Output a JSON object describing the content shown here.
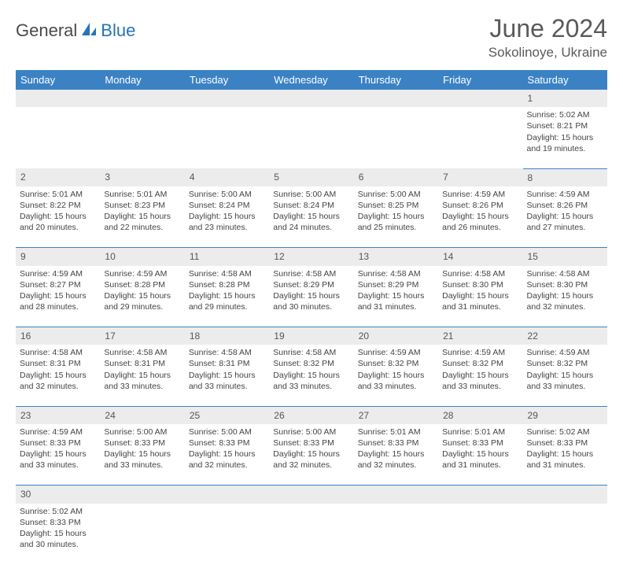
{
  "logo": {
    "part1": "General",
    "part2": "Blue"
  },
  "title": "June 2024",
  "location": "Sokolinoye, Ukraine",
  "colors": {
    "header_bg": "#3b82c4",
    "header_fg": "#ffffff",
    "daynum_bg": "#ececec",
    "cell_border": "#3b82c4",
    "text": "#444444",
    "logo_blue": "#2673b8",
    "logo_gray": "#4a4a4a"
  },
  "weekdays": [
    "Sunday",
    "Monday",
    "Tuesday",
    "Wednesday",
    "Thursday",
    "Friday",
    "Saturday"
  ],
  "weeks": [
    {
      "nums": [
        "",
        "",
        "",
        "",
        "",
        "",
        "1"
      ],
      "cells": [
        null,
        null,
        null,
        null,
        null,
        null,
        {
          "sunrise": "5:02 AM",
          "sunset": "8:21 PM",
          "daylight": "15 hours and 19 minutes."
        }
      ]
    },
    {
      "nums": [
        "2",
        "3",
        "4",
        "5",
        "6",
        "7",
        "8"
      ],
      "cells": [
        {
          "sunrise": "5:01 AM",
          "sunset": "8:22 PM",
          "daylight": "15 hours and 20 minutes."
        },
        {
          "sunrise": "5:01 AM",
          "sunset": "8:23 PM",
          "daylight": "15 hours and 22 minutes."
        },
        {
          "sunrise": "5:00 AM",
          "sunset": "8:24 PM",
          "daylight": "15 hours and 23 minutes."
        },
        {
          "sunrise": "5:00 AM",
          "sunset": "8:24 PM",
          "daylight": "15 hours and 24 minutes."
        },
        {
          "sunrise": "5:00 AM",
          "sunset": "8:25 PM",
          "daylight": "15 hours and 25 minutes."
        },
        {
          "sunrise": "4:59 AM",
          "sunset": "8:26 PM",
          "daylight": "15 hours and 26 minutes."
        },
        {
          "sunrise": "4:59 AM",
          "sunset": "8:26 PM",
          "daylight": "15 hours and 27 minutes."
        }
      ]
    },
    {
      "nums": [
        "9",
        "10",
        "11",
        "12",
        "13",
        "14",
        "15"
      ],
      "cells": [
        {
          "sunrise": "4:59 AM",
          "sunset": "8:27 PM",
          "daylight": "15 hours and 28 minutes."
        },
        {
          "sunrise": "4:59 AM",
          "sunset": "8:28 PM",
          "daylight": "15 hours and 29 minutes."
        },
        {
          "sunrise": "4:58 AM",
          "sunset": "8:28 PM",
          "daylight": "15 hours and 29 minutes."
        },
        {
          "sunrise": "4:58 AM",
          "sunset": "8:29 PM",
          "daylight": "15 hours and 30 minutes."
        },
        {
          "sunrise": "4:58 AM",
          "sunset": "8:29 PM",
          "daylight": "15 hours and 31 minutes."
        },
        {
          "sunrise": "4:58 AM",
          "sunset": "8:30 PM",
          "daylight": "15 hours and 31 minutes."
        },
        {
          "sunrise": "4:58 AM",
          "sunset": "8:30 PM",
          "daylight": "15 hours and 32 minutes."
        }
      ]
    },
    {
      "nums": [
        "16",
        "17",
        "18",
        "19",
        "20",
        "21",
        "22"
      ],
      "cells": [
        {
          "sunrise": "4:58 AM",
          "sunset": "8:31 PM",
          "daylight": "15 hours and 32 minutes."
        },
        {
          "sunrise": "4:58 AM",
          "sunset": "8:31 PM",
          "daylight": "15 hours and 33 minutes."
        },
        {
          "sunrise": "4:58 AM",
          "sunset": "8:31 PM",
          "daylight": "15 hours and 33 minutes."
        },
        {
          "sunrise": "4:58 AM",
          "sunset": "8:32 PM",
          "daylight": "15 hours and 33 minutes."
        },
        {
          "sunrise": "4:59 AM",
          "sunset": "8:32 PM",
          "daylight": "15 hours and 33 minutes."
        },
        {
          "sunrise": "4:59 AM",
          "sunset": "8:32 PM",
          "daylight": "15 hours and 33 minutes."
        },
        {
          "sunrise": "4:59 AM",
          "sunset": "8:32 PM",
          "daylight": "15 hours and 33 minutes."
        }
      ]
    },
    {
      "nums": [
        "23",
        "24",
        "25",
        "26",
        "27",
        "28",
        "29"
      ],
      "cells": [
        {
          "sunrise": "4:59 AM",
          "sunset": "8:33 PM",
          "daylight": "15 hours and 33 minutes."
        },
        {
          "sunrise": "5:00 AM",
          "sunset": "8:33 PM",
          "daylight": "15 hours and 33 minutes."
        },
        {
          "sunrise": "5:00 AM",
          "sunset": "8:33 PM",
          "daylight": "15 hours and 32 minutes."
        },
        {
          "sunrise": "5:00 AM",
          "sunset": "8:33 PM",
          "daylight": "15 hours and 32 minutes."
        },
        {
          "sunrise": "5:01 AM",
          "sunset": "8:33 PM",
          "daylight": "15 hours and 32 minutes."
        },
        {
          "sunrise": "5:01 AM",
          "sunset": "8:33 PM",
          "daylight": "15 hours and 31 minutes."
        },
        {
          "sunrise": "5:02 AM",
          "sunset": "8:33 PM",
          "daylight": "15 hours and 31 minutes."
        }
      ]
    },
    {
      "nums": [
        "30",
        "",
        "",
        "",
        "",
        "",
        ""
      ],
      "cells": [
        {
          "sunrise": "5:02 AM",
          "sunset": "8:33 PM",
          "daylight": "15 hours and 30 minutes."
        },
        null,
        null,
        null,
        null,
        null,
        null
      ]
    }
  ],
  "labels": {
    "sunrise": "Sunrise:",
    "sunset": "Sunset:",
    "daylight": "Daylight:"
  }
}
